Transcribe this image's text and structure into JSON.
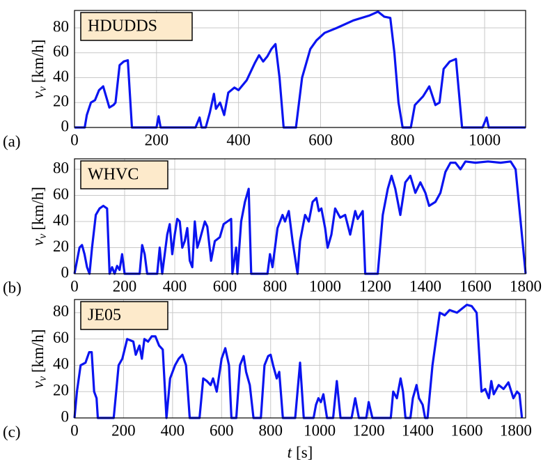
{
  "chart_data": [
    {
      "type": "line",
      "title": "HDUDDS",
      "panel_label": "(a)",
      "ylabel_symbol": "v",
      "ylabel_sub": "v",
      "ylabel_unit": "[km/h]",
      "color": "#0a14f0",
      "xlim": [
        0,
        1100
      ],
      "xticks": [
        0,
        200,
        400,
        600,
        800,
        1000
      ],
      "ylim": [
        0,
        94
      ],
      "yticks": [
        0,
        20,
        40,
        60,
        80
      ],
      "grid": true,
      "x": [
        0,
        25,
        30,
        40,
        50,
        60,
        70,
        85,
        95,
        100,
        110,
        120,
        130,
        140,
        200,
        205,
        210,
        295,
        305,
        310,
        320,
        330,
        340,
        345,
        355,
        365,
        375,
        390,
        400,
        420,
        440,
        450,
        460,
        470,
        480,
        490,
        500,
        510,
        540,
        555,
        575,
        590,
        610,
        640,
        680,
        720,
        740,
        755,
        770,
        780,
        790,
        800,
        820,
        830,
        850,
        865,
        880,
        890,
        900,
        915,
        930,
        945,
        995,
        1005,
        1010,
        1100
      ],
      "values": [
        0,
        0,
        10,
        20,
        22,
        30,
        33,
        16,
        18,
        20,
        50,
        53,
        54,
        0,
        0,
        9,
        0,
        0,
        8,
        0,
        0,
        12,
        27,
        15,
        20,
        10,
        28,
        32,
        30,
        38,
        52,
        58,
        53,
        57,
        63,
        67,
        40,
        0,
        0,
        40,
        63,
        70,
        76,
        80,
        86,
        90,
        93,
        89,
        88,
        60,
        20,
        0,
        0,
        18,
        25,
        33,
        18,
        20,
        47,
        53,
        55,
        0,
        0,
        8,
        0,
        0
      ]
    },
    {
      "type": "line",
      "title": "WHVC",
      "panel_label": "(b)",
      "ylabel_symbol": "v",
      "ylabel_sub": "v",
      "ylabel_unit": "[km/h]",
      "color": "#0a14f0",
      "xlim": [
        0,
        1800
      ],
      "xticks": [
        0,
        200,
        400,
        600,
        800,
        1000,
        1200,
        1400,
        1600,
        1800
      ],
      "ylim": [
        0,
        88
      ],
      "yticks": [
        0,
        20,
        40,
        60,
        80
      ],
      "grid": true,
      "x": [
        0,
        10,
        20,
        30,
        40,
        50,
        60,
        70,
        85,
        100,
        115,
        130,
        140,
        150,
        160,
        170,
        180,
        190,
        200,
        260,
        270,
        280,
        290,
        330,
        340,
        350,
        370,
        380,
        390,
        400,
        410,
        420,
        430,
        440,
        450,
        460,
        470,
        480,
        490,
        500,
        520,
        530,
        545,
        560,
        580,
        595,
        610,
        625,
        630,
        645,
        650,
        665,
        680,
        695,
        705,
        770,
        780,
        790,
        810,
        830,
        840,
        855,
        870,
        890,
        900,
        920,
        935,
        950,
        965,
        975,
        985,
        1000,
        1010,
        1025,
        1040,
        1060,
        1080,
        1100,
        1120,
        1130,
        1150,
        1160,
        1210,
        1230,
        1250,
        1265,
        1280,
        1300,
        1320,
        1340,
        1360,
        1380,
        1400,
        1415,
        1440,
        1460,
        1480,
        1500,
        1520,
        1540,
        1560,
        1600,
        1650,
        1700,
        1740,
        1760,
        1780,
        1800
      ],
      "values": [
        0,
        10,
        20,
        22,
        15,
        5,
        0,
        20,
        45,
        50,
        52,
        50,
        0,
        5,
        0,
        6,
        3,
        15,
        0,
        0,
        22,
        15,
        0,
        0,
        20,
        0,
        30,
        38,
        15,
        30,
        42,
        40,
        20,
        25,
        35,
        10,
        5,
        40,
        20,
        26,
        40,
        36,
        10,
        25,
        28,
        38,
        40,
        42,
        0,
        20,
        0,
        40,
        55,
        65,
        0,
        0,
        15,
        5,
        35,
        45,
        40,
        48,
        25,
        0,
        25,
        45,
        40,
        55,
        58,
        48,
        50,
        35,
        20,
        30,
        50,
        43,
        45,
        30,
        48,
        42,
        48,
        0,
        0,
        45,
        65,
        75,
        65,
        45,
        70,
        75,
        62,
        70,
        62,
        52,
        55,
        62,
        78,
        85,
        85,
        80,
        86,
        85,
        86,
        85,
        86,
        80,
        40,
        0
      ]
    },
    {
      "type": "line",
      "title": "JE05",
      "panel_label": "(c)",
      "ylabel_symbol": "v",
      "ylabel_sub": "v",
      "ylabel_unit": "[km/h]",
      "xlabel_symbol": "t",
      "xlabel_unit": "[s]",
      "color": "#0a14f0",
      "xlim": [
        0,
        1840
      ],
      "xticks": [
        0,
        200,
        400,
        600,
        800,
        1000,
        1200,
        1400,
        1600,
        1800
      ],
      "ylim": [
        0,
        90
      ],
      "yticks": [
        0,
        20,
        40,
        60,
        80
      ],
      "grid": true,
      "x": [
        0,
        10,
        25,
        45,
        60,
        70,
        80,
        90,
        95,
        160,
        170,
        180,
        195,
        215,
        240,
        250,
        265,
        275,
        285,
        300,
        315,
        330,
        345,
        360,
        375,
        390,
        410,
        425,
        440,
        455,
        470,
        510,
        525,
        540,
        555,
        565,
        580,
        600,
        615,
        630,
        640,
        660,
        675,
        690,
        700,
        715,
        730,
        760,
        775,
        790,
        800,
        810,
        825,
        835,
        850,
        900,
        920,
        935,
        975,
        985,
        995,
        1005,
        1015,
        1030,
        1055,
        1070,
        1085,
        1130,
        1145,
        1160,
        1190,
        1200,
        1215,
        1290,
        1300,
        1315,
        1330,
        1340,
        1350,
        1370,
        1380,
        1395,
        1405,
        1420,
        1430,
        1440,
        1460,
        1490,
        1510,
        1530,
        1560,
        1580,
        1600,
        1620,
        1640,
        1650,
        1660,
        1675,
        1690,
        1700,
        1710,
        1730,
        1750,
        1770,
        1790,
        1805,
        1815,
        1825
      ],
      "values": [
        0,
        20,
        40,
        42,
        50,
        50,
        20,
        15,
        0,
        0,
        20,
        40,
        45,
        60,
        58,
        48,
        55,
        45,
        60,
        58,
        62,
        62,
        55,
        52,
        0,
        30,
        40,
        45,
        48,
        40,
        0,
        0,
        30,
        28,
        25,
        30,
        20,
        45,
        53,
        40,
        0,
        0,
        40,
        47,
        35,
        25,
        0,
        0,
        40,
        47,
        48,
        40,
        30,
        35,
        0,
        0,
        42,
        0,
        0,
        10,
        15,
        12,
        18,
        0,
        0,
        28,
        0,
        0,
        15,
        0,
        0,
        12,
        0,
        0,
        20,
        15,
        30,
        20,
        0,
        0,
        15,
        25,
        15,
        10,
        0,
        0,
        40,
        80,
        78,
        82,
        80,
        83,
        86,
        85,
        80,
        50,
        20,
        22,
        15,
        28,
        18,
        25,
        22,
        27,
        15,
        20,
        18,
        0
      ]
    }
  ]
}
